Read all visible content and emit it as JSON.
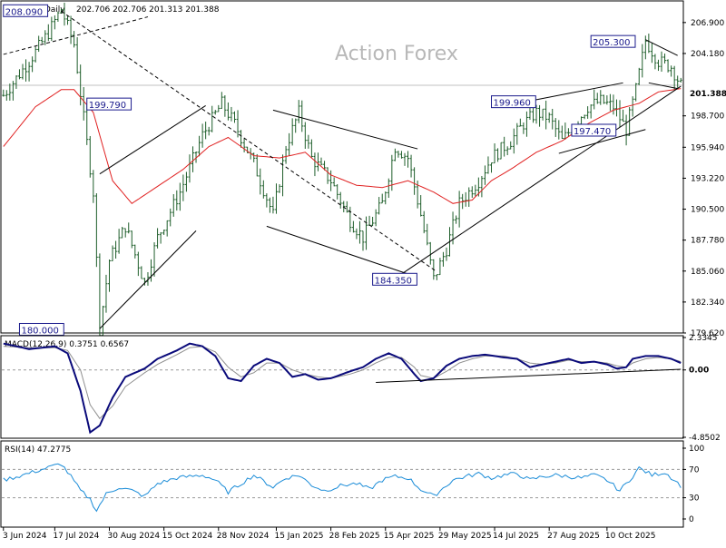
{
  "chart_data": [
    {
      "type": "candlestick",
      "title": "GBPJPY,Daily",
      "ohlc_header": "202.706 202.706 201.313 201.388",
      "watermark": "Action Forex",
      "ylim": [
        179.62,
        208.8
      ],
      "y_ticks": [
        "206.900",
        "204.180",
        "201.388",
        "198.700",
        "195.940",
        "193.220",
        "190.500",
        "187.780",
        "185.060",
        "182.340",
        "179.620"
      ],
      "current_price": "201.388",
      "x_ticks": [
        "3 Jun 2024",
        "17 Jul 2024",
        "30 Aug 2024",
        "15 Oct 2024",
        "28 Nov 2024",
        "15 Jan 2025",
        "28 Feb 2025",
        "15 Apr 2025",
        "29 May 2025",
        "14 Jul 2025",
        "27 Aug 2025",
        "10 Oct 2025"
      ],
      "annotations": [
        "208.090",
        "199.790",
        "180.000",
        "184.350",
        "199.960",
        "197.470",
        "205.300"
      ],
      "series_path": [
        [
          0,
          200.5
        ],
        [
          8,
          203.5
        ],
        [
          14,
          206
        ],
        [
          18,
          208.09
        ],
        [
          22,
          205
        ],
        [
          25,
          198.5
        ],
        [
          28,
          192
        ],
        [
          30,
          180
        ],
        [
          33,
          186
        ],
        [
          38,
          189
        ],
        [
          44,
          184
        ],
        [
          48,
          188
        ],
        [
          55,
          192
        ],
        [
          62,
          197
        ],
        [
          68,
          199.79
        ],
        [
          72,
          198
        ],
        [
          78,
          194.5
        ],
        [
          84,
          190
        ],
        [
          88,
          196
        ],
        [
          92,
          199
        ],
        [
          96,
          195
        ],
        [
          102,
          193
        ],
        [
          108,
          189.5
        ],
        [
          112,
          188
        ],
        [
          118,
          191
        ],
        [
          122,
          196
        ],
        [
          126,
          195
        ],
        [
          130,
          190
        ],
        [
          134,
          184.35
        ],
        [
          138,
          187
        ],
        [
          142,
          191
        ],
        [
          148,
          193
        ],
        [
          152,
          195
        ],
        [
          158,
          196.5
        ],
        [
          162,
          198
        ],
        [
          166,
          199
        ],
        [
          170,
          198.5
        ],
        [
          174,
          196.5
        ],
        [
          178,
          198
        ],
        [
          182,
          199.5
        ],
        [
          186,
          200
        ],
        [
          190,
          199.5
        ],
        [
          194,
          197.47
        ],
        [
          197,
          201
        ],
        [
          200,
          205.3
        ],
        [
          204,
          203.5
        ],
        [
          208,
          203
        ],
        [
          211,
          201.388
        ]
      ],
      "ma_path": [
        [
          0,
          196
        ],
        [
          10,
          199.5
        ],
        [
          18,
          201
        ],
        [
          22,
          201
        ],
        [
          28,
          199
        ],
        [
          34,
          193
        ],
        [
          40,
          191
        ],
        [
          48,
          192.5
        ],
        [
          56,
          194
        ],
        [
          64,
          196
        ],
        [
          70,
          196.8
        ],
        [
          78,
          195.2
        ],
        [
          86,
          195
        ],
        [
          94,
          195.5
        ],
        [
          102,
          193.5
        ],
        [
          110,
          192.6
        ],
        [
          118,
          192.4
        ],
        [
          126,
          193
        ],
        [
          134,
          192
        ],
        [
          140,
          191
        ],
        [
          146,
          191.3
        ],
        [
          152,
          193
        ],
        [
          158,
          194
        ],
        [
          166,
          195.5
        ],
        [
          174,
          196.5
        ],
        [
          182,
          198
        ],
        [
          190,
          199.2
        ],
        [
          198,
          199.8
        ],
        [
          204,
          200.8
        ],
        [
          211,
          201.1
        ]
      ]
    },
    {
      "type": "line",
      "title": "MACD(12,26,9) 0.3751 0.6567",
      "ylim": [
        -4.8502,
        2.3345
      ],
      "y_ticks": [
        "2.3345",
        "0.00",
        "-4.8502"
      ],
      "macd_path": [
        [
          0,
          1.9
        ],
        [
          8,
          1.5
        ],
        [
          16,
          1.7
        ],
        [
          20,
          1.2
        ],
        [
          24,
          -1.5
        ],
        [
          27,
          -4.5
        ],
        [
          30,
          -4.0
        ],
        [
          34,
          -2.0
        ],
        [
          38,
          -0.5
        ],
        [
          44,
          0.1
        ],
        [
          48,
          0.8
        ],
        [
          54,
          1.4
        ],
        [
          58,
          1.9
        ],
        [
          62,
          1.7
        ],
        [
          66,
          1.0
        ],
        [
          70,
          -0.6
        ],
        [
          74,
          -0.8
        ],
        [
          78,
          0.3
        ],
        [
          82,
          0.8
        ],
        [
          86,
          0.5
        ],
        [
          90,
          -0.5
        ],
        [
          94,
          -0.3
        ],
        [
          98,
          -0.7
        ],
        [
          102,
          -0.6
        ],
        [
          108,
          -0.1
        ],
        [
          112,
          0.2
        ],
        [
          116,
          0.8
        ],
        [
          120,
          1.2
        ],
        [
          124,
          0.8
        ],
        [
          128,
          -0.3
        ],
        [
          130,
          -0.8
        ],
        [
          134,
          -0.6
        ],
        [
          138,
          0.3
        ],
        [
          142,
          0.8
        ],
        [
          146,
          1.0
        ],
        [
          150,
          1.1
        ],
        [
          156,
          0.9
        ],
        [
          160,
          0.8
        ],
        [
          164,
          0.2
        ],
        [
          168,
          0.4
        ],
        [
          172,
          0.6
        ],
        [
          176,
          0.8
        ],
        [
          180,
          0.5
        ],
        [
          184,
          0.6
        ],
        [
          188,
          0.4
        ],
        [
          191,
          0.1
        ],
        [
          194,
          0.2
        ],
        [
          196,
          0.8
        ],
        [
          200,
          1.0
        ],
        [
          204,
          1.0
        ],
        [
          208,
          0.8
        ],
        [
          211,
          0.5
        ]
      ],
      "signal_path": [
        [
          0,
          1.7
        ],
        [
          8,
          1.6
        ],
        [
          16,
          1.6
        ],
        [
          20,
          1.4
        ],
        [
          24,
          0.0
        ],
        [
          27,
          -2.5
        ],
        [
          30,
          -3.5
        ],
        [
          34,
          -2.6
        ],
        [
          38,
          -1.2
        ],
        [
          44,
          -0.2
        ],
        [
          48,
          0.4
        ],
        [
          54,
          1.1
        ],
        [
          58,
          1.6
        ],
        [
          62,
          1.7
        ],
        [
          66,
          1.3
        ],
        [
          70,
          0.2
        ],
        [
          74,
          -0.5
        ],
        [
          78,
          -0.2
        ],
        [
          82,
          0.5
        ],
        [
          86,
          0.5
        ],
        [
          90,
          0.0
        ],
        [
          94,
          -0.3
        ],
        [
          98,
          -0.5
        ],
        [
          102,
          -0.6
        ],
        [
          108,
          -0.3
        ],
        [
          112,
          0.0
        ],
        [
          116,
          0.5
        ],
        [
          120,
          0.9
        ],
        [
          124,
          0.9
        ],
        [
          128,
          0.2
        ],
        [
          130,
          -0.4
        ],
        [
          134,
          -0.6
        ],
        [
          138,
          -0.1
        ],
        [
          142,
          0.5
        ],
        [
          146,
          0.8
        ],
        [
          150,
          1.0
        ],
        [
          156,
          1.0
        ],
        [
          160,
          0.8
        ],
        [
          164,
          0.5
        ],
        [
          168,
          0.4
        ],
        [
          172,
          0.5
        ],
        [
          176,
          0.7
        ],
        [
          180,
          0.6
        ],
        [
          184,
          0.6
        ],
        [
          188,
          0.5
        ],
        [
          191,
          0.3
        ],
        [
          194,
          0.2
        ],
        [
          196,
          0.5
        ],
        [
          200,
          0.8
        ],
        [
          204,
          0.9
        ],
        [
          208,
          0.8
        ],
        [
          211,
          0.6
        ]
      ]
    },
    {
      "type": "line",
      "title": "RSI(14) 47.2775",
      "ylim": [
        0,
        100
      ],
      "y_ticks": [
        "100",
        "70",
        "30",
        "0"
      ],
      "rsi_path": [
        [
          0,
          55
        ],
        [
          6,
          62
        ],
        [
          12,
          70
        ],
        [
          18,
          78
        ],
        [
          21,
          60
        ],
        [
          24,
          40
        ],
        [
          27,
          28
        ],
        [
          29,
          12
        ],
        [
          32,
          35
        ],
        [
          36,
          45
        ],
        [
          40,
          40
        ],
        [
          44,
          32
        ],
        [
          48,
          50
        ],
        [
          54,
          58
        ],
        [
          58,
          60
        ],
        [
          62,
          62
        ],
        [
          66,
          55
        ],
        [
          70,
          38
        ],
        [
          74,
          50
        ],
        [
          78,
          62
        ],
        [
          84,
          45
        ],
        [
          88,
          58
        ],
        [
          92,
          62
        ],
        [
          96,
          48
        ],
        [
          100,
          40
        ],
        [
          106,
          48
        ],
        [
          110,
          50
        ],
        [
          114,
          42
        ],
        [
          118,
          55
        ],
        [
          122,
          60
        ],
        [
          126,
          58
        ],
        [
          130,
          42
        ],
        [
          134,
          32
        ],
        [
          136,
          40
        ],
        [
          140,
          55
        ],
        [
          144,
          60
        ],
        [
          148,
          64
        ],
        [
          152,
          58
        ],
        [
          156,
          62
        ],
        [
          160,
          64
        ],
        [
          164,
          55
        ],
        [
          168,
          60
        ],
        [
          172,
          62
        ],
        [
          176,
          60
        ],
        [
          180,
          58
        ],
        [
          184,
          62
        ],
        [
          188,
          55
        ],
        [
          192,
          40
        ],
        [
          195,
          55
        ],
        [
          198,
          72
        ],
        [
          202,
          62
        ],
        [
          206,
          66
        ],
        [
          209,
          55
        ],
        [
          211,
          47
        ]
      ]
    }
  ]
}
